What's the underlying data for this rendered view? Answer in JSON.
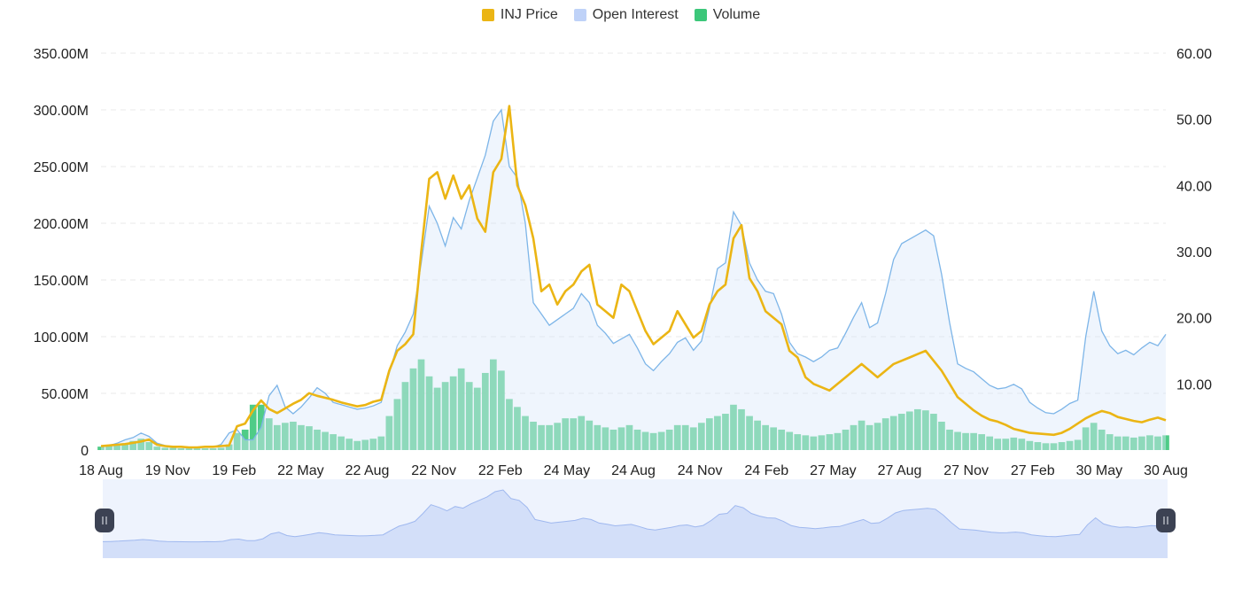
{
  "legend": [
    {
      "label": "INJ Price",
      "color": "#EBB514"
    },
    {
      "label": "Open Interest",
      "color": "#BFD2F8"
    },
    {
      "label": "Volume",
      "color": "#3CC77A"
    }
  ],
  "chart_data": {
    "type": "line",
    "x_tick_labels": [
      "18 Aug",
      "19 Nov",
      "19 Feb",
      "22 May",
      "22 Aug",
      "22 Nov",
      "22 Feb",
      "24 May",
      "24 Aug",
      "24 Nov",
      "24 Feb",
      "27 May",
      "27 Aug",
      "27 Nov",
      "27 Feb",
      "30 May",
      "30 Aug"
    ],
    "y_left_tick_labels": [
      "0",
      "50.00M",
      "100.00M",
      "150.00M",
      "200.00M",
      "250.00M",
      "300.00M",
      "350.00M"
    ],
    "y_right_tick_labels": [
      "10.00",
      "20.00",
      "30.00",
      "40.00",
      "50.00",
      "60.00"
    ],
    "y_left_range": [
      0,
      350000000
    ],
    "y_right_range": [
      0,
      60
    ],
    "grid": "horizontal dashed",
    "legend_position": "top-center",
    "series": [
      {
        "name": "INJ Price",
        "axis": "right",
        "type": "line",
        "color": "#EBB514",
        "values": [
          0.6,
          0.7,
          0.8,
          0.9,
          1.1,
          1.3,
          1.6,
          0.8,
          0.6,
          0.5,
          0.5,
          0.4,
          0.4,
          0.5,
          0.5,
          0.6,
          0.7,
          3.6,
          4.0,
          6.0,
          7.5,
          6.2,
          5.6,
          6.3,
          7.0,
          7.6,
          8.6,
          8.2,
          7.9,
          7.6,
          7.2,
          6.9,
          6.6,
          6.8,
          7.3,
          7.6,
          12.0,
          15.0,
          16.0,
          17.5,
          30.0,
          41.0,
          42.0,
          38.0,
          41.5,
          38.0,
          40.0,
          35.0,
          33.0,
          42.0,
          44.0,
          52.0,
          40.0,
          37.0,
          32.0,
          24.0,
          25.0,
          22.0,
          24.0,
          25.0,
          27.0,
          28.0,
          22.0,
          21.0,
          20.0,
          25.0,
          24.0,
          21.0,
          18.0,
          16.0,
          17.0,
          18.0,
          21.0,
          19.0,
          17.0,
          18.0,
          22.0,
          24.0,
          25.0,
          32.0,
          34.0,
          26.0,
          24.0,
          21.0,
          20.0,
          19.0,
          15.0,
          14.0,
          11.0,
          10.0,
          9.5,
          9.0,
          10.0,
          11.0,
          12.0,
          13.0,
          12.0,
          11.0,
          12.0,
          13.0,
          13.5,
          14.0,
          14.5,
          15.0,
          13.5,
          12.0,
          10.0,
          8.0,
          7.0,
          6.0,
          5.2,
          4.6,
          4.3,
          3.8,
          3.2,
          2.9,
          2.6,
          2.5,
          2.4,
          2.3,
          2.6,
          3.2,
          4.0,
          4.8,
          5.4,
          5.9,
          5.6,
          5.0,
          4.7,
          4.4,
          4.2,
          4.6,
          4.9,
          4.5
        ]
      },
      {
        "name": "Open Interest",
        "axis": "left",
        "type": "area",
        "color": "#7DB5E8",
        "values": [
          3000000,
          4000000,
          6000000,
          9000000,
          11000000,
          15000000,
          12000000,
          6000000,
          4000000,
          3000000,
          2500000,
          2000000,
          2000000,
          3000000,
          2500000,
          5000000,
          15000000,
          18000000,
          9000000,
          9000000,
          20000000,
          48000000,
          57000000,
          38000000,
          32000000,
          38000000,
          46000000,
          55000000,
          50000000,
          42000000,
          40000000,
          38000000,
          36000000,
          37000000,
          39000000,
          42000000,
          68000000,
          92000000,
          104000000,
          120000000,
          165000000,
          215000000,
          200000000,
          180000000,
          205000000,
          195000000,
          220000000,
          240000000,
          260000000,
          290000000,
          300000000,
          250000000,
          240000000,
          200000000,
          130000000,
          120000000,
          110000000,
          115000000,
          120000000,
          125000000,
          138000000,
          130000000,
          110000000,
          103000000,
          94000000,
          98000000,
          102000000,
          90000000,
          76000000,
          70000000,
          78000000,
          85000000,
          95000000,
          99000000,
          88000000,
          96000000,
          125000000,
          160000000,
          165000000,
          210000000,
          198000000,
          165000000,
          150000000,
          140000000,
          138000000,
          120000000,
          95000000,
          85000000,
          82000000,
          78000000,
          82000000,
          88000000,
          90000000,
          103000000,
          117000000,
          130000000,
          108000000,
          112000000,
          138000000,
          168000000,
          182000000,
          186000000,
          190000000,
          194000000,
          189000000,
          155000000,
          112000000,
          76000000,
          72000000,
          69000000,
          63000000,
          57000000,
          54000000,
          55000000,
          58000000,
          54000000,
          42000000,
          37000000,
          33000000,
          32000000,
          36000000,
          41000000,
          44000000,
          100000000,
          140000000,
          105000000,
          92000000,
          85000000,
          88000000,
          84000000,
          90000000,
          95000000,
          92000000,
          102000000
        ]
      },
      {
        "name": "Volume",
        "axis": "left",
        "type": "bar",
        "color": "#3CC77A",
        "values": [
          3000000,
          4000000,
          5000000,
          6000000,
          8000000,
          10000000,
          7000000,
          3000000,
          2000000,
          2000000,
          1500000,
          1500000,
          1500000,
          1500000,
          1500000,
          2000000,
          5000000,
          15000000,
          18000000,
          40000000,
          40000000,
          28000000,
          22000000,
          24000000,
          25000000,
          22000000,
          21000000,
          18000000,
          16000000,
          14000000,
          12000000,
          10000000,
          8000000,
          9000000,
          10000000,
          12000000,
          30000000,
          45000000,
          60000000,
          72000000,
          80000000,
          65000000,
          55000000,
          60000000,
          65000000,
          72000000,
          60000000,
          55000000,
          68000000,
          80000000,
          70000000,
          45000000,
          38000000,
          30000000,
          25000000,
          22000000,
          22000000,
          24000000,
          28000000,
          28000000,
          30000000,
          26000000,
          22000000,
          20000000,
          18000000,
          20000000,
          22000000,
          18000000,
          16000000,
          15000000,
          16000000,
          18000000,
          22000000,
          22000000,
          20000000,
          24000000,
          28000000,
          30000000,
          32000000,
          40000000,
          36000000,
          30000000,
          26000000,
          22000000,
          20000000,
          18000000,
          16000000,
          14000000,
          13000000,
          12000000,
          13000000,
          14000000,
          15000000,
          18000000,
          22000000,
          26000000,
          22000000,
          24000000,
          28000000,
          30000000,
          32000000,
          34000000,
          36000000,
          35000000,
          32000000,
          25000000,
          18000000,
          16000000,
          15000000,
          15000000,
          14000000,
          12000000,
          10000000,
          10000000,
          11000000,
          10000000,
          8000000,
          7000000,
          6000000,
          6000000,
          7000000,
          8000000,
          9000000,
          20000000,
          24000000,
          18000000,
          14000000,
          12000000,
          12000000,
          11000000,
          12000000,
          13000000,
          12000000,
          13000000
        ]
      }
    ]
  }
}
